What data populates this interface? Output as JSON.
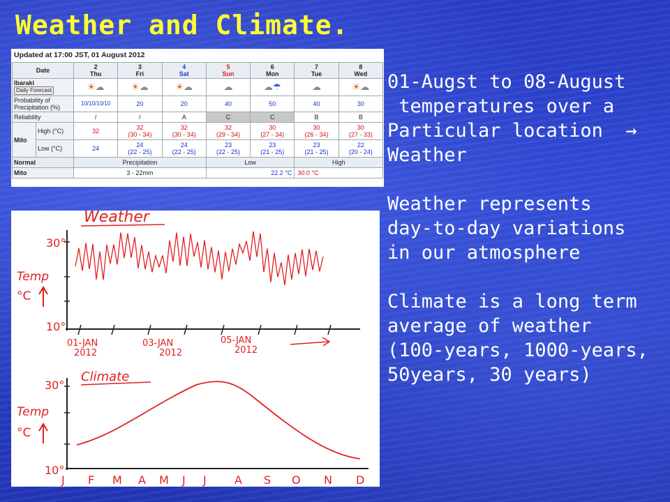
{
  "title": "Weather and Climate.",
  "text": {
    "lines1": [
      "01-Augst to 08-August",
      " temperatures over a",
      "Particular location  →",
      "Weather"
    ],
    "lines2": [
      "Weather represents",
      "day-to-day variations",
      "in our atmosphere"
    ],
    "lines3": [
      "Climate is a long term",
      "average of weather",
      "(100-years, 1000-years,",
      "50years, 30 years)"
    ]
  },
  "forecast": {
    "updated": "Updated at 17:00 JST, 01 August 2012",
    "date_label": "Date",
    "region": "Ibaraki",
    "button": "Daily Forecast",
    "days": [
      {
        "num": "2",
        "name": "Thu"
      },
      {
        "num": "3",
        "name": "Fri"
      },
      {
        "num": "4",
        "name": "Sat"
      },
      {
        "num": "5",
        "name": "Sun"
      },
      {
        "num": "6",
        "name": "Mon"
      },
      {
        "num": "7",
        "name": "Tue"
      },
      {
        "num": "8",
        "name": "Wed"
      }
    ],
    "prob_label": "Probability of Precipitation (%)",
    "prob": [
      "10/10/10/10",
      "20",
      "20",
      "40",
      "50",
      "40",
      "30"
    ],
    "rel_label": "Reliability",
    "rel": [
      "/",
      "/",
      "A",
      "C",
      "C",
      "B",
      "B"
    ],
    "city": "Mito",
    "high_label": "High (°C)",
    "high": [
      "32",
      "32",
      "32",
      "32",
      "30",
      "30",
      "30"
    ],
    "high_range": [
      "",
      "(30 - 34)",
      "(30 - 34)",
      "(29 - 34)",
      "(27 - 34)",
      "(26 - 34)",
      "(27 - 33)"
    ],
    "low_label": "Low (°C)",
    "low": [
      "24",
      "24",
      "24",
      "23",
      "23",
      "23",
      "22"
    ],
    "low_range": [
      "",
      "(22 - 25)",
      "(22 - 25)",
      "(22 - 25)",
      "(21 - 25)",
      "(21 - 25)",
      "(20 - 24)"
    ],
    "normal_label": "Normal",
    "precip_label": "Precipitation",
    "low_head": "Low",
    "high_head": "High",
    "normal_city": "Mito",
    "normal_precip": "3 - 22mm",
    "normal_low": "22.2 °C",
    "normal_high": "30.0 °C"
  },
  "weather_graph": {
    "title": "Weather",
    "y_label_1": "Temp",
    "y_label_2": "°C",
    "y_top": "30°",
    "y_bottom": "10°",
    "x_labels": [
      [
        "01-JAN",
        "2012"
      ],
      [
        "03-JAN",
        "2012"
      ],
      [
        "05-JAN",
        "2012"
      ]
    ]
  },
  "climate_graph": {
    "title": "Climate",
    "y_label_1": "Temp",
    "y_label_2": "°C",
    "y_top": "30°",
    "y_bottom": "10°",
    "months": [
      "J",
      "F",
      "M",
      "A",
      "M",
      "J",
      "J",
      "A",
      "S",
      "O",
      "N",
      "D"
    ]
  },
  "colors": {
    "background": "#2a3fc8",
    "title": "#ffff33",
    "text": "#ffffff",
    "sketch": "#e02020"
  }
}
